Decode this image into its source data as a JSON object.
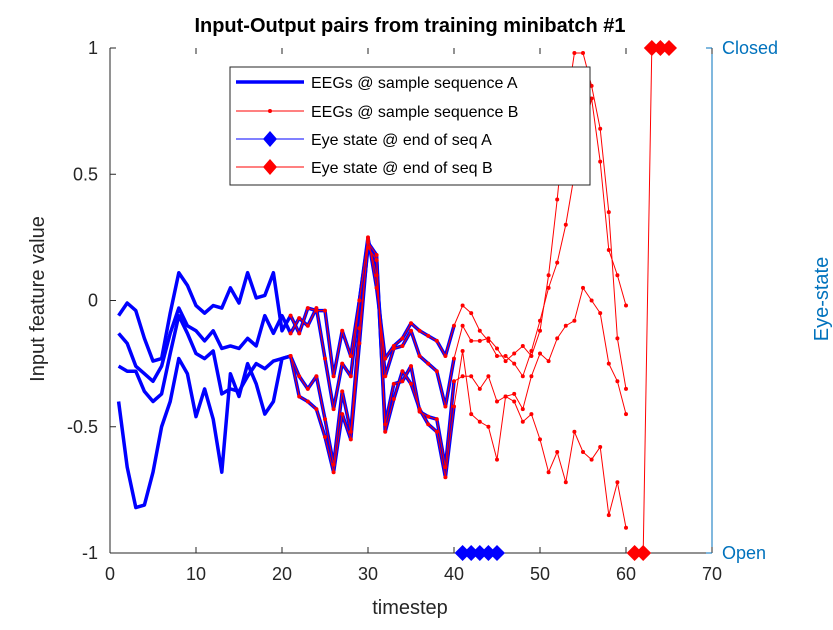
{
  "chart_data": {
    "type": "line",
    "title": "Input-Output pairs from training minibatch #1",
    "xlabel": "timestep",
    "ylabel": "Input feature value",
    "y2label": "Eye-state",
    "xlim": [
      0,
      70
    ],
    "ylim": [
      -1,
      1
    ],
    "xticks": [
      "0",
      "10",
      "20",
      "30",
      "40",
      "50",
      "60",
      "70"
    ],
    "yticks": [
      "-1",
      "-0.5",
      "0",
      "0.5",
      "1"
    ],
    "y2ticks": [
      "Open",
      "Closed"
    ],
    "grid": false,
    "legend_position": "top-center",
    "legend": [
      "EEGs @ sample sequence A",
      "EEGs @ sample sequence B",
      "Eye state @ end of seq A",
      "Eye state @ end of seq B"
    ],
    "colors": {
      "seqA": "#0000ff",
      "seqB": "#ff0000",
      "right_axis": "#0072bd"
    },
    "series": [
      {
        "name": "EEGs @ sample sequence A",
        "group": "A",
        "x": [
          1,
          2,
          3,
          4,
          5,
          6,
          7,
          8,
          9,
          10,
          11,
          12,
          13,
          14,
          15,
          16,
          17,
          18,
          19,
          20,
          21,
          22,
          23,
          24,
          25,
          26,
          27,
          28,
          29,
          30,
          31,
          32,
          33,
          34,
          35,
          36,
          37,
          38,
          39,
          40
        ],
        "lines": [
          [
            -0.4,
            -0.66,
            -0.82,
            -0.81,
            -0.68,
            -0.5,
            -0.4,
            -0.23,
            -0.29,
            -0.46,
            -0.35,
            -0.47,
            -0.68,
            -0.29,
            -0.38,
            -0.25,
            -0.33,
            -0.45,
            -0.4,
            -0.23,
            -0.22,
            -0.38,
            -0.4,
            -0.43,
            -0.54,
            -0.68,
            -0.45,
            -0.55,
            -0.17,
            0.23,
            0.18,
            -0.52,
            -0.39,
            -0.28,
            -0.33,
            -0.43,
            -0.49,
            -0.52,
            -0.7,
            -0.42
          ],
          [
            -0.26,
            -0.28,
            -0.28,
            -0.36,
            -0.4,
            -0.37,
            -0.21,
            -0.06,
            -0.13,
            -0.21,
            -0.23,
            -0.2,
            -0.37,
            -0.35,
            -0.36,
            -0.3,
            -0.25,
            -0.27,
            -0.24,
            -0.23,
            -0.22,
            -0.3,
            -0.35,
            -0.3,
            -0.47,
            -0.65,
            -0.36,
            -0.52,
            -0.11,
            0.21,
            0.16,
            -0.49,
            -0.33,
            -0.32,
            -0.26,
            -0.44,
            -0.46,
            -0.47,
            -0.66,
            -0.32
          ],
          [
            -0.13,
            -0.17,
            -0.26,
            -0.29,
            -0.32,
            -0.26,
            -0.13,
            -0.03,
            -0.1,
            -0.12,
            -0.16,
            -0.12,
            -0.19,
            -0.18,
            -0.19,
            -0.15,
            -0.18,
            -0.06,
            -0.13,
            -0.06,
            -0.13,
            -0.07,
            -0.1,
            -0.03,
            -0.23,
            -0.43,
            -0.25,
            -0.3,
            0.0,
            0.24,
            0.1,
            -0.3,
            -0.19,
            -0.18,
            -0.12,
            -0.22,
            -0.25,
            -0.28,
            -0.42,
            -0.23
          ],
          [
            -0.06,
            -0.01,
            -0.04,
            -0.15,
            -0.24,
            -0.23,
            -0.05,
            0.11,
            0.06,
            -0.02,
            -0.05,
            -0.02,
            -0.03,
            0.05,
            -0.01,
            0.11,
            0.01,
            0.02,
            0.11,
            -0.12,
            -0.06,
            -0.13,
            -0.03,
            -0.04,
            -0.04,
            -0.3,
            -0.12,
            -0.22,
            0.0,
            0.25,
            0.05,
            -0.23,
            -0.18,
            -0.15,
            -0.09,
            -0.12,
            -0.14,
            -0.16,
            -0.22,
            -0.1
          ]
        ]
      },
      {
        "name": "EEGs @ sample sequence B",
        "group": "B",
        "x": [
          21,
          22,
          23,
          24,
          25,
          26,
          27,
          28,
          29,
          30,
          31,
          32,
          33,
          34,
          35,
          36,
          37,
          38,
          39,
          40,
          41,
          42,
          43,
          44,
          45,
          46,
          47,
          48,
          49,
          50,
          51,
          52,
          53,
          54,
          55,
          56,
          57,
          58,
          59,
          60
        ],
        "lines": [
          [
            -0.22,
            -0.38,
            -0.4,
            -0.43,
            -0.54,
            -0.68,
            -0.45,
            -0.55,
            -0.17,
            0.23,
            0.18,
            -0.52,
            -0.39,
            -0.28,
            -0.33,
            -0.43,
            -0.49,
            -0.52,
            -0.7,
            -0.42,
            -0.2,
            -0.45,
            -0.48,
            -0.5,
            -0.63,
            -0.38,
            -0.4,
            -0.48,
            -0.45,
            -0.55,
            -0.68,
            -0.6,
            -0.72,
            -0.52,
            -0.6,
            -0.63,
            -0.58,
            -0.85,
            -0.72,
            -0.9
          ],
          [
            -0.22,
            -0.3,
            -0.35,
            -0.3,
            -0.47,
            -0.65,
            -0.36,
            -0.52,
            -0.11,
            0.21,
            0.16,
            -0.49,
            -0.33,
            -0.32,
            -0.26,
            -0.44,
            -0.46,
            -0.47,
            -0.66,
            -0.32,
            -0.3,
            -0.3,
            -0.35,
            -0.3,
            -0.4,
            -0.38,
            -0.37,
            -0.43,
            -0.3,
            -0.21,
            -0.24,
            -0.15,
            -0.1,
            -0.08,
            0.05,
            0.0,
            -0.05,
            -0.25,
            -0.32,
            -0.45
          ],
          [
            -0.13,
            -0.07,
            -0.1,
            -0.03,
            -0.23,
            -0.43,
            -0.25,
            -0.3,
            0.0,
            0.24,
            0.1,
            -0.3,
            -0.19,
            -0.18,
            -0.12,
            -0.22,
            -0.25,
            -0.28,
            -0.42,
            -0.23,
            -0.1,
            -0.16,
            -0.16,
            -0.15,
            -0.19,
            -0.24,
            -0.21,
            -0.18,
            -0.22,
            -0.12,
            0.1,
            0.4,
            0.75,
            0.98,
            0.98,
            0.85,
            0.68,
            0.35,
            -0.15,
            -0.35
          ],
          [
            -0.06,
            -0.13,
            -0.03,
            -0.04,
            -0.04,
            -0.3,
            -0.12,
            -0.22,
            0.0,
            0.25,
            0.05,
            -0.23,
            -0.18,
            -0.15,
            -0.09,
            -0.12,
            -0.14,
            -0.16,
            -0.22,
            -0.1,
            -0.02,
            -0.05,
            -0.12,
            -0.16,
            -0.22,
            -0.22,
            -0.25,
            -0.3,
            -0.2,
            -0.08,
            0.05,
            0.15,
            0.3,
            0.5,
            0.65,
            0.8,
            0.55,
            0.2,
            0.1,
            -0.02
          ]
        ]
      },
      {
        "name": "Eye state @ end of seq A",
        "group": "A",
        "markers": true,
        "x": [
          41,
          42,
          43,
          44,
          45
        ],
        "values": [
          -1,
          -1,
          -1,
          -1,
          -1
        ]
      },
      {
        "name": "Eye state @ end of seq B",
        "group": "B",
        "markers": true,
        "x": [
          61,
          62,
          63,
          64,
          65
        ],
        "values": [
          -1,
          -1,
          1,
          1,
          1
        ]
      }
    ]
  }
}
